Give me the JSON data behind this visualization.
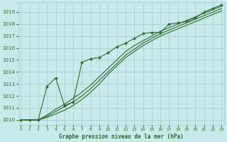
{
  "bg_color": "#c8eaea",
  "grid_color": "#a8caca",
  "line_color": "#2d6a2d",
  "title": "Graphe pression niveau de la mer (hPa)",
  "xlim": [
    -0.3,
    23.3
  ],
  "ylim": [
    1009.6,
    1019.8
  ],
  "yticks": [
    1010,
    1011,
    1012,
    1013,
    1014,
    1015,
    1016,
    1017,
    1018,
    1019
  ],
  "xticks": [
    0,
    1,
    2,
    3,
    4,
    5,
    6,
    7,
    8,
    9,
    10,
    11,
    12,
    13,
    14,
    15,
    16,
    17,
    18,
    19,
    20,
    21,
    22,
    23
  ],
  "line_marked": {
    "x": [
      0,
      1,
      2,
      3,
      4,
      5,
      6,
      7,
      8,
      9,
      10,
      11,
      12,
      13,
      14,
      15,
      16,
      17,
      18,
      19,
      20,
      21,
      22,
      23
    ],
    "y": [
      1010.0,
      1010.0,
      1010.0,
      1012.8,
      1013.5,
      1011.2,
      1011.5,
      1014.8,
      1015.1,
      1015.2,
      1015.6,
      1016.1,
      1016.4,
      1016.8,
      1017.2,
      1017.3,
      1017.3,
      1018.0,
      1018.1,
      1018.2,
      1018.5,
      1019.0,
      1019.3,
      1019.6
    ]
  },
  "lines_smooth": [
    [
      1010.0,
      1010.0,
      1010.0,
      1010.2,
      1010.5,
      1010.8,
      1011.2,
      1011.7,
      1012.3,
      1013.0,
      1013.8,
      1014.5,
      1015.2,
      1015.7,
      1016.2,
      1016.6,
      1017.0,
      1017.3,
      1017.6,
      1017.9,
      1018.2,
      1018.5,
      1018.8,
      1019.1
    ],
    [
      1010.0,
      1010.0,
      1010.0,
      1010.3,
      1010.7,
      1011.1,
      1011.5,
      1012.0,
      1012.6,
      1013.3,
      1014.0,
      1014.7,
      1015.4,
      1015.9,
      1016.4,
      1016.8,
      1017.2,
      1017.5,
      1017.8,
      1018.1,
      1018.4,
      1018.7,
      1019.0,
      1019.3
    ],
    [
      1010.0,
      1010.0,
      1010.0,
      1010.4,
      1010.9,
      1011.3,
      1011.8,
      1012.3,
      1012.9,
      1013.6,
      1014.3,
      1015.0,
      1015.7,
      1016.2,
      1016.6,
      1017.0,
      1017.4,
      1017.7,
      1018.0,
      1018.3,
      1018.6,
      1018.9,
      1019.2,
      1019.5
    ]
  ]
}
